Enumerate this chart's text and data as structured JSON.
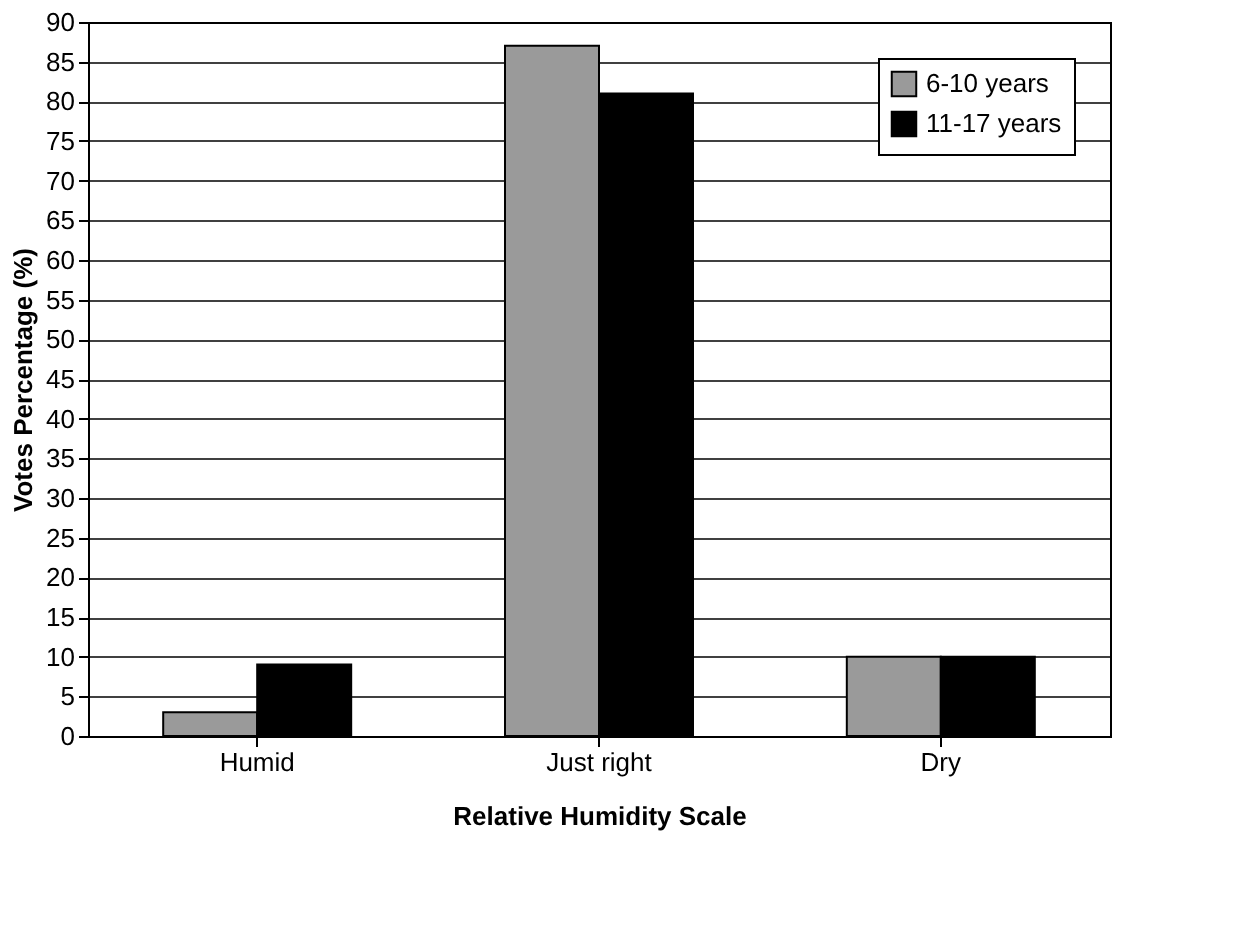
{
  "chart_data": {
    "type": "bar",
    "xlabel": "Relative Humidity Scale",
    "ylabel": "Votes Percentage (%)",
    "categories": [
      "Humid",
      "Just right",
      "Dry"
    ],
    "series": [
      {
        "name": "6-10 years",
        "color": "#9a9a9a",
        "values": [
          3,
          87,
          10
        ]
      },
      {
        "name": "11-17 years",
        "color": "#000000",
        "values": [
          9,
          81,
          10
        ]
      }
    ],
    "ylim": [
      0,
      90
    ],
    "yticks": [
      0,
      5,
      10,
      15,
      20,
      25,
      30,
      35,
      40,
      45,
      50,
      55,
      60,
      65,
      70,
      75,
      80,
      85,
      90
    ],
    "grid": "y",
    "legend": "top right"
  }
}
